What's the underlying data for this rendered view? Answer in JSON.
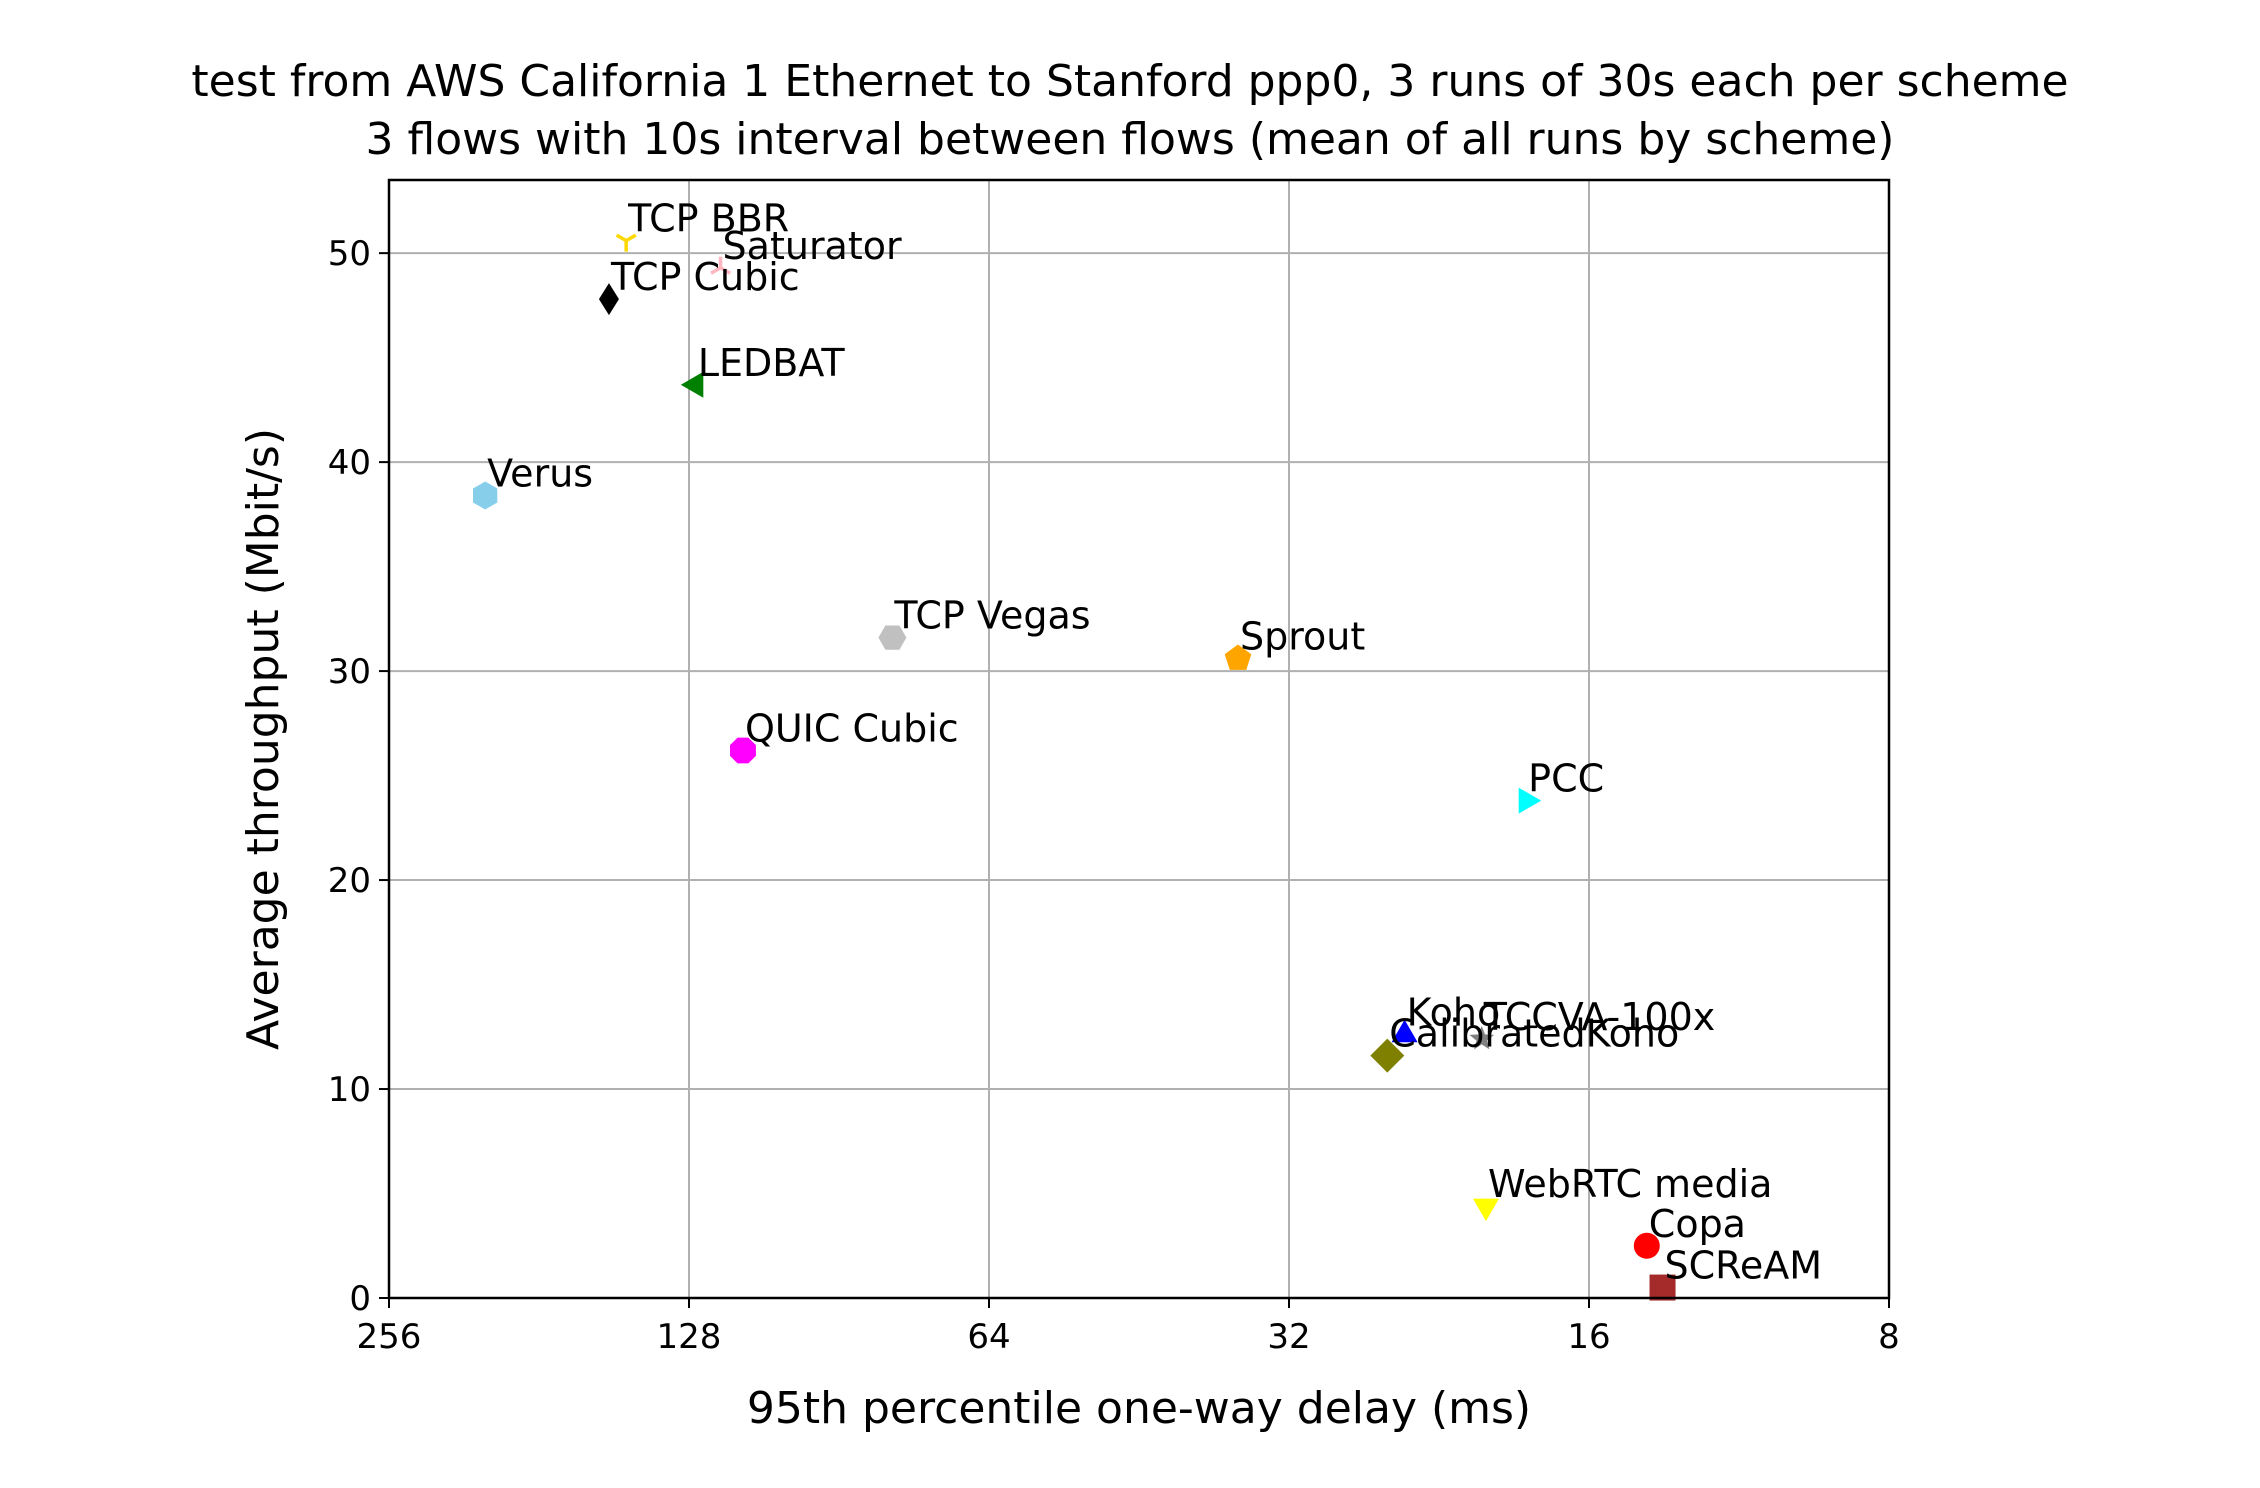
{
  "chart_data": {
    "type": "scatter",
    "title": "test from AWS California 1 Ethernet to Stanford ppp0, 3 runs of 30s each per scheme",
    "subtitle": "3 flows with 10s interval between flows (mean of all runs by scheme)",
    "xlabel": "95th percentile one-way delay (ms)",
    "ylabel": "Average throughput (Mbit/s)",
    "x_scale": "log2",
    "x_reversed": true,
    "xlim": [
      256,
      8
    ],
    "ylim": [
      0,
      53.5
    ],
    "x_ticks": [
      256,
      128,
      64,
      32,
      16,
      8
    ],
    "x_tick_labels": [
      "256",
      "128",
      "64",
      "32",
      "16",
      "8"
    ],
    "y_ticks": [
      0,
      10,
      20,
      30,
      40,
      50
    ],
    "y_tick_labels": [
      "0",
      "10",
      "20",
      "30",
      "40",
      "50"
    ],
    "grid": true,
    "points": [
      {
        "name": "TCP BBR",
        "x": 148,
        "y": 50.6,
        "marker": "tri_down",
        "color": "#FFD700"
      },
      {
        "name": "Saturator",
        "x": 119,
        "y": 49.3,
        "marker": "tri_up",
        "color": "#FFB6C1"
      },
      {
        "name": "TCP Cubic",
        "x": 154,
        "y": 47.8,
        "marker": "thin_diamond",
        "color": "#000000"
      },
      {
        "name": "LEDBAT",
        "x": 126,
        "y": 43.7,
        "marker": "triangle_left",
        "color": "#008000"
      },
      {
        "name": "Verus",
        "x": 205,
        "y": 38.4,
        "marker": "hexagon",
        "color": "#87CEEB"
      },
      {
        "name": "TCP Vegas",
        "x": 80,
        "y": 31.6,
        "marker": "hexagon2",
        "color": "#C0C0C0"
      },
      {
        "name": "Sprout",
        "x": 36,
        "y": 30.6,
        "marker": "pentagon",
        "color": "#FFA500"
      },
      {
        "name": "QUIC Cubic",
        "x": 113,
        "y": 26.2,
        "marker": "octagon",
        "color": "#FF00FF"
      },
      {
        "name": "PCC",
        "x": 18.5,
        "y": 23.8,
        "marker": "triangle_right",
        "color": "#00FFFF"
      },
      {
        "name": "Koho",
        "x": 24.5,
        "y": 12.6,
        "marker": "triangle_up",
        "color": "#0000FF"
      },
      {
        "name": "TCCVA-100x",
        "x": 20.5,
        "y": 12.4,
        "marker": "star",
        "color": "#808080"
      },
      {
        "name": "CalibratedKoho",
        "x": 25.5,
        "y": 11.6,
        "marker": "diamond",
        "color": "#808000"
      },
      {
        "name": "WebRTC media",
        "x": 20.3,
        "y": 4.4,
        "marker": "triangle_down",
        "color": "#FFFF00"
      },
      {
        "name": "Copa",
        "x": 14.0,
        "y": 2.5,
        "marker": "circle",
        "color": "#FF0000"
      },
      {
        "name": "SCReAM",
        "x": 13.5,
        "y": 0.5,
        "marker": "square",
        "color": "#A52A2A"
      }
    ]
  }
}
